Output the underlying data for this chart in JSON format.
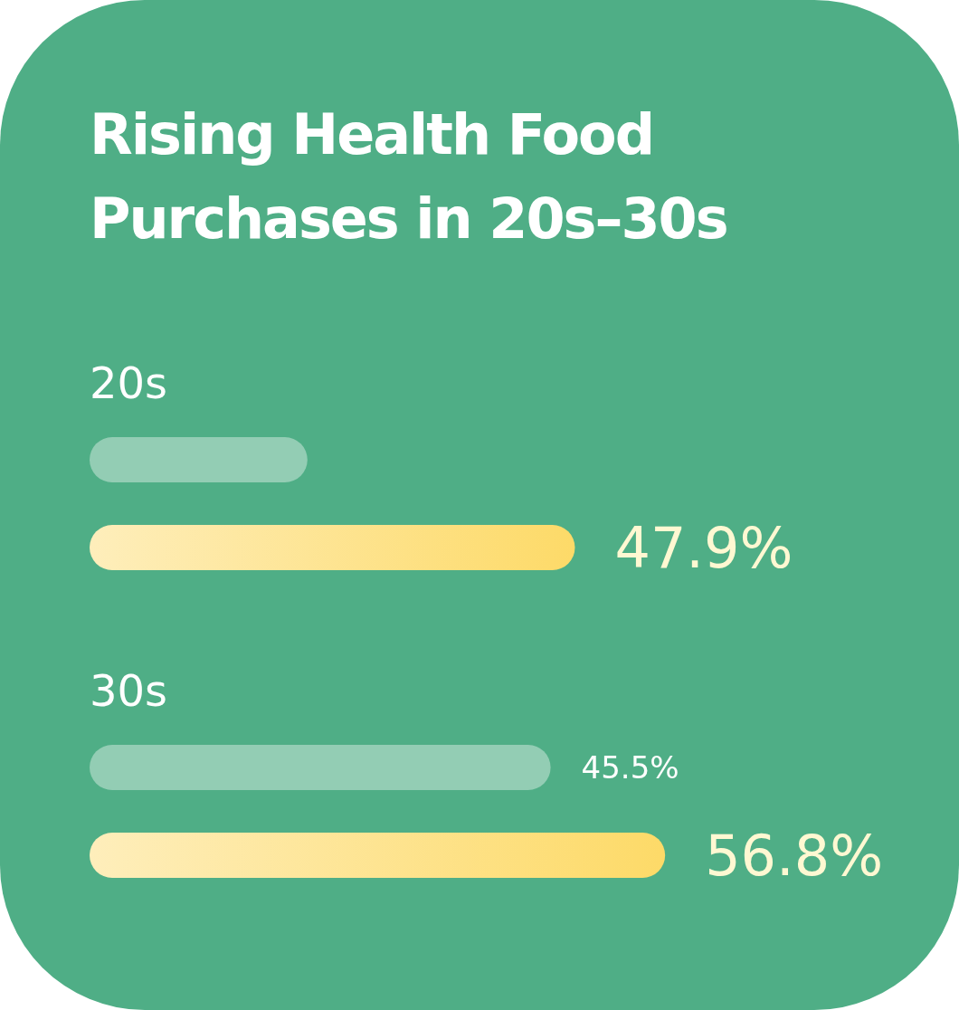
{
  "chart_data": {
    "type": "bar",
    "orientation": "horizontal",
    "title": "Rising Health Food Purchases in 20s–30s",
    "categories": [
      "20s",
      "30s"
    ],
    "series": [
      {
        "color": "#93cdb4",
        "values": [
          21.5,
          45.5
        ],
        "value_labels": [
          null,
          "45.5%"
        ]
      },
      {
        "color": "#fdda68",
        "values": [
          47.9,
          56.8
        ],
        "value_labels": [
          "47.9%",
          "56.8%"
        ]
      }
    ]
  }
}
